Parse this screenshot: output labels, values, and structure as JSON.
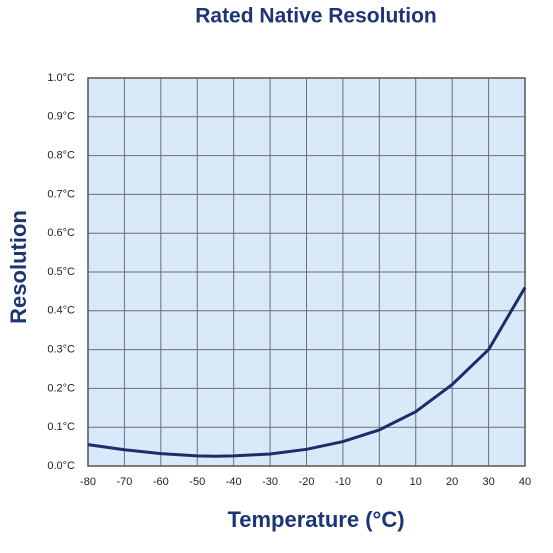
{
  "chart_data": {
    "type": "line",
    "title": "Rated Native Resolution",
    "x_label": "Temperature (°C)",
    "y_label": "Resolution",
    "x": [
      -80,
      -70,
      -60,
      -50,
      -45,
      -40,
      -30,
      -20,
      -10,
      0,
      10,
      20,
      30,
      40
    ],
    "series": [
      {
        "name": "Resolution",
        "color": "#1b2e6a",
        "values": [
          0.055,
          0.042,
          0.032,
          0.026,
          0.025,
          0.026,
          0.031,
          0.043,
          0.063,
          0.093,
          0.14,
          0.21,
          0.3,
          0.46
        ]
      }
    ],
    "xlim": [
      -80,
      40
    ],
    "xticks": [
      -80,
      -70,
      -60,
      -50,
      -40,
      -30,
      -20,
      -10,
      0,
      10,
      20,
      30,
      40
    ],
    "ylim": [
      0,
      1.0
    ],
    "yticks": [
      {
        "value": 0,
        "label": "0.0°C"
      },
      {
        "value": 0.1,
        "label": "0.1°C"
      },
      {
        "value": 0.2,
        "label": "0.2°C"
      },
      {
        "value": 0.3,
        "label": "0.3°C"
      },
      {
        "value": 0.4,
        "label": "0.4°C"
      },
      {
        "value": 0.5,
        "label": "0.5°C"
      },
      {
        "value": 0.6,
        "label": "0.6°C"
      },
      {
        "value": 0.7,
        "label": "0.7°C"
      },
      {
        "value": 0.8,
        "label": "0.8°C"
      },
      {
        "value": 0.9,
        "label": "0.9°C"
      },
      {
        "value": 1.0,
        "label": "1.0°C"
      }
    ],
    "grid": true
  }
}
